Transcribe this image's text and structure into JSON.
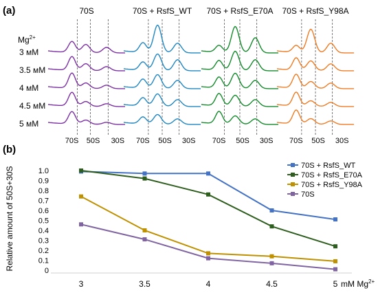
{
  "panel_a": {
    "label": "(a)",
    "mg_header": "Mg",
    "mg_header_sup": "2+",
    "row_labels": [
      "3 мМ",
      "3.5 мМ",
      "4 мМ",
      "4.5 мМ",
      "5 мМ"
    ],
    "panels": [
      {
        "title": "70S",
        "color": "#7b2fa3",
        "peak_labels": [
          "70S",
          "50S",
          "30S"
        ]
      },
      {
        "title": "70S + RsfS_WT",
        "color": "#1f86c2",
        "peak_labels": [
          "70S",
          "50S",
          "30S"
        ]
      },
      {
        "title": "70S + RsfS_E70A",
        "color": "#128a2a",
        "peak_labels": [
          "70S",
          "50S",
          "30S"
        ]
      },
      {
        "title": "70S + RsfS_Y98A",
        "color": "#f07a22",
        "peak_labels": [
          "70S",
          "50S",
          "30S"
        ]
      }
    ]
  },
  "chart_data": {
    "type": "line",
    "panel_label": "(b)",
    "ylabel": "Relative amount of 50S+30S",
    "x_unit": "mM Mg",
    "x_unit_sup": "2+",
    "categories": [
      "3",
      "3.5",
      "4",
      "4.5",
      "5"
    ],
    "ylim": [
      0,
      1.0
    ],
    "yticks": [
      "0",
      "0.1",
      "0.2",
      "0.3",
      "0.4",
      "0.5",
      "0.6",
      "0.7",
      "0.8",
      "0.9",
      "1.0"
    ],
    "grid": false,
    "legend_position": "top-right",
    "series": [
      {
        "name": "70S + RsfS_WT",
        "color": "#4472c4",
        "values": [
          0.99,
          0.97,
          0.97,
          0.6,
          0.51
        ]
      },
      {
        "name": "70S + RsfS_E70A",
        "color": "#2e5e1e",
        "values": [
          1.0,
          0.92,
          0.76,
          0.44,
          0.24
        ]
      },
      {
        "name": "70S + RsfS_Y98A",
        "color": "#bf9000",
        "values": [
          0.74,
          0.4,
          0.17,
          0.14,
          0.09
        ]
      },
      {
        "name": "70S",
        "color": "#8064a2",
        "values": [
          0.46,
          0.31,
          0.12,
          0.07,
          0.01
        ]
      }
    ]
  }
}
